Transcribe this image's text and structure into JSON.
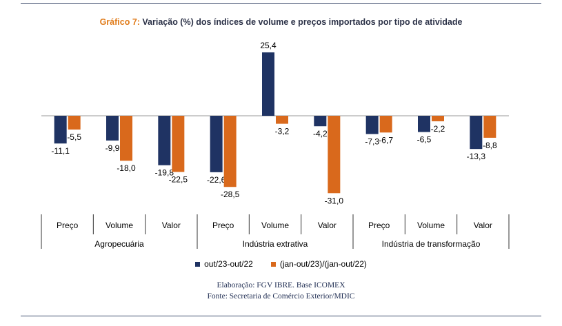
{
  "header": {
    "title_label": "Gráfico 7:",
    "title_text": " Variação (%) dos índices de volume e preços importados por tipo de atividade"
  },
  "colors": {
    "series1": "#1f3363",
    "series2": "#d9691c",
    "title_label": "#e07b1a",
    "rule": "#3b4a6b"
  },
  "chart_data": {
    "type": "bar",
    "groups": [
      "Agropecuária",
      "Indústria extrativa",
      "Indústria de transformação"
    ],
    "categories": [
      "Preço",
      "Volume",
      "Valor",
      "Preço",
      "Volume",
      "Valor",
      "Preço",
      "Volume",
      "Valor"
    ],
    "series": [
      {
        "name": "out/23-out/22",
        "values": [
          -11.1,
          -9.9,
          -19.8,
          -22.6,
          25.4,
          -4.2,
          -7.3,
          -6.5,
          -13.3
        ]
      },
      {
        "name": "(jan-out/23)/(jan-out/22)",
        "values": [
          -5.5,
          -18.0,
          -22.5,
          -28.5,
          -3.2,
          -31.0,
          -6.7,
          -2.2,
          -8.8
        ]
      }
    ],
    "data_labels": [
      [
        "-11,1",
        "-9,9",
        "-19,8",
        "-22,6",
        "25,4",
        "-4,2",
        "-7,3",
        "-6,5",
        "-13,3"
      ],
      [
        "-5,5",
        "-18,0",
        "-22,5",
        "-28,5",
        "-3,2",
        "-31,0",
        "-6,7",
        "-2,2",
        "-8,8"
      ]
    ],
    "ylim": [
      -31,
      25.4
    ],
    "grid": false,
    "legend": "bottom"
  },
  "footer": {
    "line1": "Elaboração: FGV IBRE. Base ICOMEX",
    "line2": "Fonte: Secretaria de Comércio Exterior/MDIC"
  }
}
